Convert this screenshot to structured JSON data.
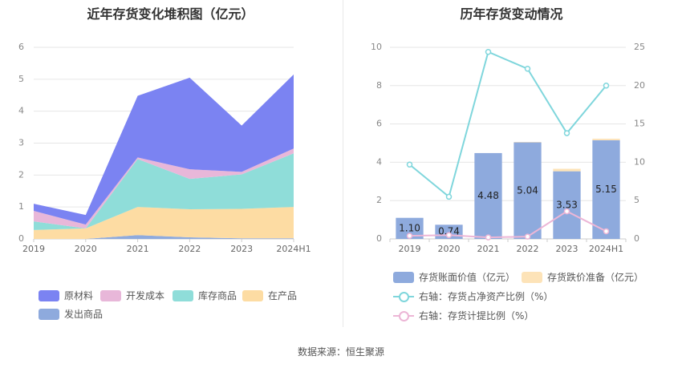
{
  "left_title": "近年存货变化堆积图（亿元）",
  "right_title": "历年存货变动情况",
  "source": "数据来源：恒生聚源",
  "left_legend": [
    {
      "label": "原材料",
      "color": "#7b83f2"
    },
    {
      "label": "开发成本",
      "color": "#e8b7d9"
    },
    {
      "label": "库存商品",
      "color": "#8fddd9"
    },
    {
      "label": "在产品",
      "color": "#fddca3"
    },
    {
      "label": "发出商品",
      "color": "#8eaadd"
    }
  ],
  "right_legend": [
    {
      "label": "存货账面价值（亿元）",
      "color": "#8eaadd",
      "kind": "bar"
    },
    {
      "label": "存货跌价准备（亿元）",
      "color": "#fde3b8",
      "kind": "bar"
    },
    {
      "label": "右轴：存货占净资产比例（%）",
      "color": "#7fd6dc",
      "kind": "line"
    },
    {
      "label": "右轴：存货计提比例（%）",
      "color": "#ecb6d6",
      "kind": "line"
    }
  ],
  "chart_data": [
    {
      "type": "area",
      "stacked": true,
      "title": "近年存货变化堆积图（亿元）",
      "categories": [
        "2019",
        "2020",
        "2021",
        "2022",
        "2023",
        "2024H1"
      ],
      "ylim": [
        0,
        6
      ],
      "yticks": [
        "0",
        "1",
        "2",
        "3",
        "4",
        "5",
        "6"
      ],
      "grid": true,
      "legend_position": "bottom",
      "series": [
        {
          "name": "发出商品",
          "color": "#8eaadd",
          "values": [
            0.0,
            0.0,
            0.12,
            0.05,
            0.02,
            0.02
          ]
        },
        {
          "name": "在产品",
          "color": "#fddca3",
          "values": [
            0.28,
            0.33,
            0.88,
            0.88,
            0.92,
            0.98
          ]
        },
        {
          "name": "库存商品",
          "color": "#8fddd9",
          "values": [
            0.27,
            0.0,
            1.5,
            0.95,
            1.08,
            1.68
          ]
        },
        {
          "name": "开发成本",
          "color": "#e8b7d9",
          "values": [
            0.33,
            0.12,
            0.05,
            0.3,
            0.08,
            0.15
          ]
        },
        {
          "name": "原材料",
          "color": "#7b83f2",
          "values": [
            0.22,
            0.3,
            1.93,
            2.87,
            1.45,
            2.32
          ]
        }
      ]
    },
    {
      "type": "bar",
      "stacked": true,
      "title": "历年存货变动情况",
      "categories": [
        "2019",
        "2020",
        "2021",
        "2022",
        "2023",
        "2024H1"
      ],
      "ylim": [
        0,
        10
      ],
      "yticks": [
        "0",
        "2",
        "4",
        "6",
        "8",
        "10"
      ],
      "y2lim": [
        0,
        25
      ],
      "y2ticks": [
        "0",
        "5",
        "10",
        "15",
        "20",
        "25"
      ],
      "grid": true,
      "legend_position": "bottom",
      "series": [
        {
          "name": "存货账面价值（亿元）",
          "color": "#8eaadd",
          "axis": "left",
          "kind": "bar",
          "values": [
            1.1,
            0.74,
            4.48,
            5.04,
            3.53,
            5.15
          ],
          "labels": [
            "1.10",
            "0.74",
            "4.48",
            "5.04",
            "3.53",
            "5.15"
          ]
        },
        {
          "name": "存货跌价准备（亿元）",
          "color": "#fde3b8",
          "axis": "left",
          "kind": "bar",
          "values": [
            0.0,
            0.0,
            0.0,
            0.02,
            0.13,
            0.08
          ]
        },
        {
          "name": "右轴：存货占净资产比例（%）",
          "color": "#7fd6dc",
          "axis": "right",
          "kind": "line",
          "values": [
            9.7,
            5.5,
            24.4,
            22.2,
            13.8,
            20.0
          ]
        },
        {
          "name": "右轴：存货计提比例（%）",
          "color": "#ecb6d6",
          "axis": "right",
          "kind": "line",
          "values": [
            0.4,
            0.5,
            0.2,
            0.3,
            3.6,
            1.0
          ]
        }
      ]
    }
  ]
}
